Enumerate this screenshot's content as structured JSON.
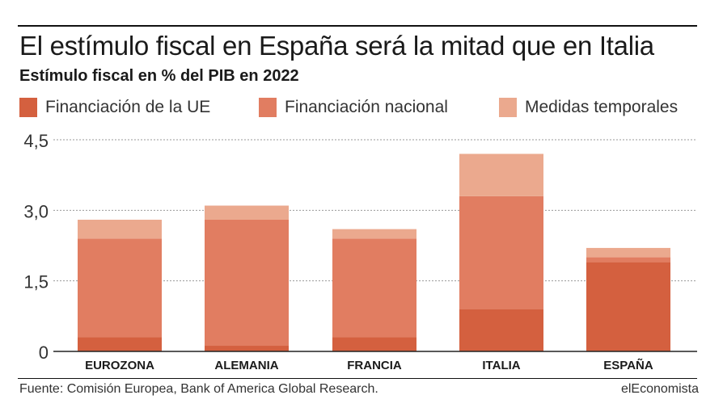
{
  "header": {
    "title": "El estímulo fiscal en España será la mitad que en Italia",
    "subtitle": "Estímulo fiscal en % del PIB en 2022"
  },
  "legend": [
    {
      "label": "Financiación de la UE",
      "color": "#d4603f"
    },
    {
      "label": "Financiación nacional",
      "color": "#e17d61"
    },
    {
      "label": "Medidas temporales",
      "color": "#eba98e"
    }
  ],
  "chart_data": {
    "type": "bar",
    "stacked": true,
    "categories": [
      "EUROZONA",
      "ALEMANIA",
      "FRANCIA",
      "ITALIA",
      "ESPAÑA"
    ],
    "series": [
      {
        "name": "Financiación de la UE",
        "values": [
          0.3,
          0.12,
          0.3,
          0.9,
          1.9
        ],
        "color": "#d4603f"
      },
      {
        "name": "Financiación nacional",
        "values": [
          2.1,
          2.68,
          2.1,
          2.4,
          0.1
        ],
        "color": "#e17d61"
      },
      {
        "name": "Medidas temporales",
        "values": [
          0.4,
          0.3,
          0.2,
          0.9,
          0.2
        ],
        "color": "#eba98e"
      }
    ],
    "y_ticks": [
      "0",
      "1,5",
      "3,0",
      "4,5"
    ],
    "ylim": [
      0,
      4.5
    ],
    "grid": true
  },
  "footer": {
    "source": "Fuente: Comisión Europea, Bank of America Global Research.",
    "brand": "elEconomista"
  }
}
